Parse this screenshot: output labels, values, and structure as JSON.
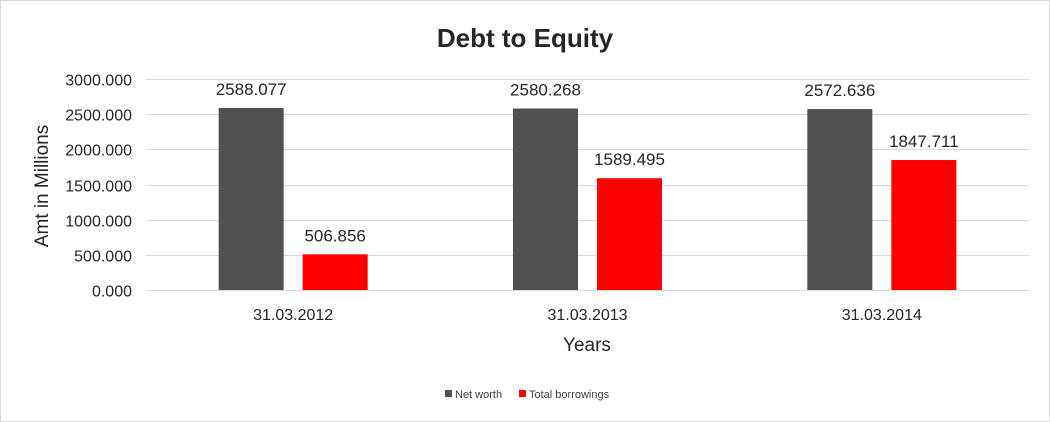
{
  "chart_data": {
    "type": "bar",
    "title": "Debt to Equity",
    "xlabel": "Years",
    "ylabel": "Amt in Millions",
    "categories": [
      "31.03.2012",
      "31.03.2013",
      "31.03.2014"
    ],
    "series": [
      {
        "name": "Net worth",
        "color": "#505050",
        "values": [
          2588.077,
          2580.268,
          2572.636
        ],
        "labels": [
          "2588.077",
          "2580.268",
          "2572.636"
        ]
      },
      {
        "name": "Total borrowings",
        "color": "#ff0000",
        "values": [
          506.856,
          1589.495,
          1847.711
        ],
        "labels": [
          "506.856",
          "1589.495",
          "1847.711"
        ]
      }
    ],
    "ylim": [
      0,
      3000
    ],
    "yticks": [
      0,
      500,
      1000,
      1500,
      2000,
      2500,
      3000
    ],
    "ytick_labels": [
      "0.000",
      "500.000",
      "1000.000",
      "1500.000",
      "2000.000",
      "2500.000",
      "3000.000"
    ],
    "grid": true,
    "legend_position": "bottom"
  }
}
